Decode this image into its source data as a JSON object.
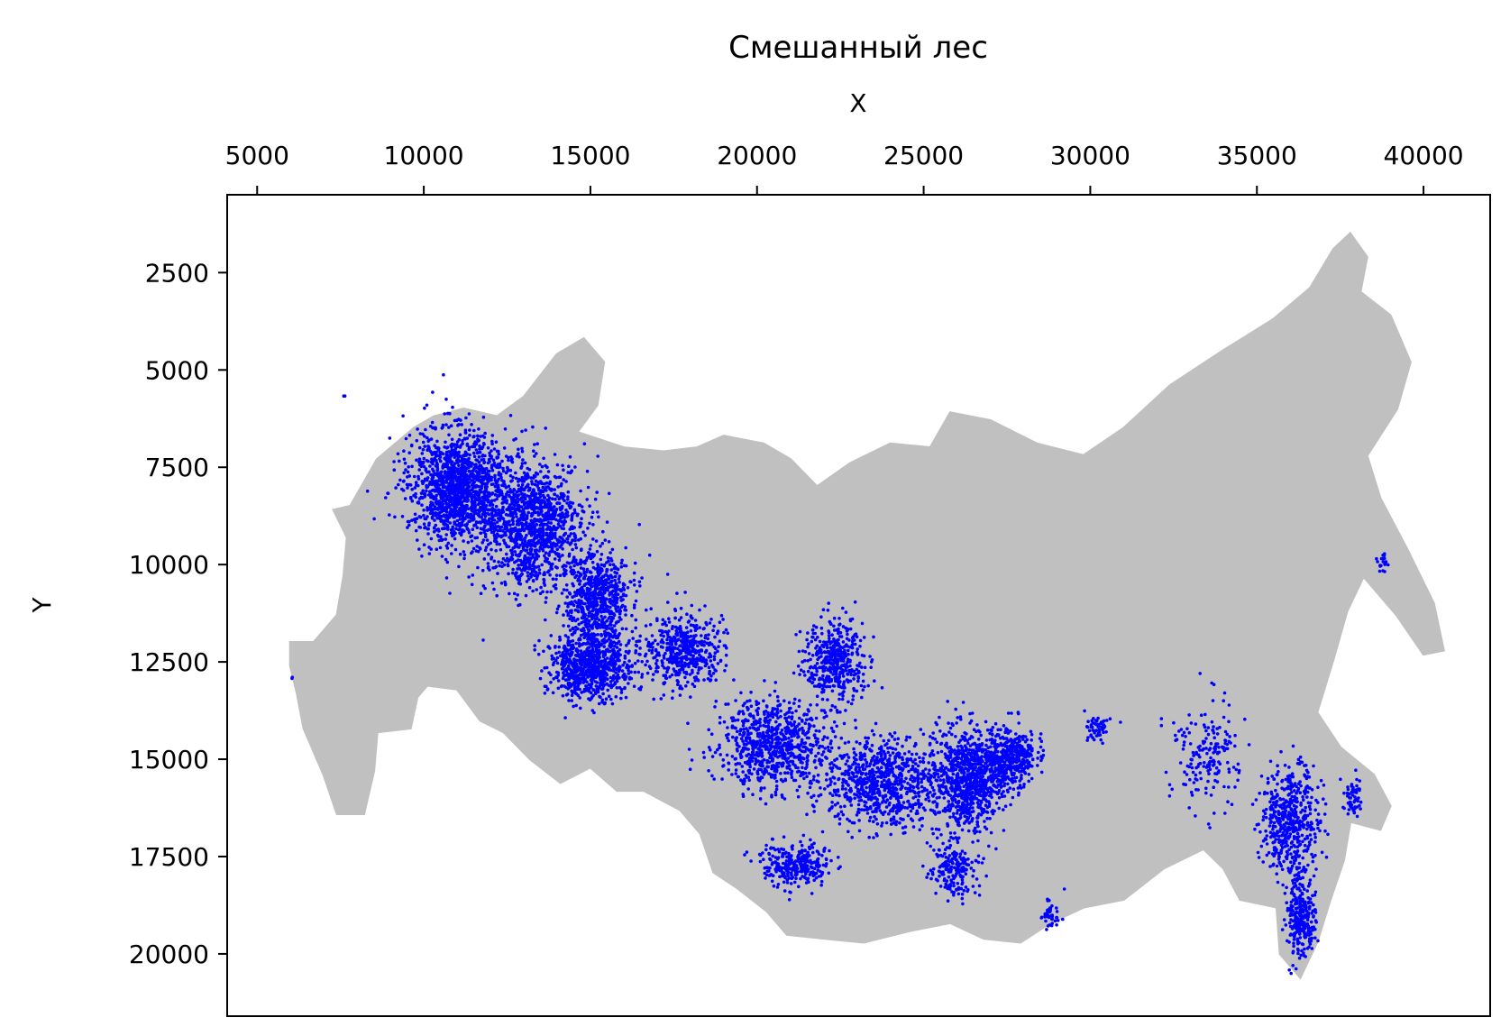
{
  "chart_data": {
    "type": "scatter",
    "title": "Смешанный лес",
    "xlabel": "X",
    "ylabel": "Y",
    "xlim": [
      4100,
      42000
    ],
    "ylim": [
      500,
      21600
    ],
    "y_inverted": true,
    "x_axis_position": "top",
    "grid": false,
    "x_ticks": [
      5000,
      10000,
      15000,
      20000,
      25000,
      30000,
      35000,
      40000
    ],
    "y_ticks": [
      2500,
      5000,
      7500,
      10000,
      12500,
      15000,
      17500,
      20000
    ],
    "background_color": "#c0c0c0",
    "point_color": "#0000ff",
    "series": [
      {
        "role": "background-territory",
        "polygon": [
          [
            6000,
            12000
          ],
          [
            6700,
            12000
          ],
          [
            7400,
            11300
          ],
          [
            7600,
            10300
          ],
          [
            7700,
            9300
          ],
          [
            7300,
            8600
          ],
          [
            7800,
            8500
          ],
          [
            8600,
            7300
          ],
          [
            9700,
            6500
          ],
          [
            10300,
            6200
          ],
          [
            11200,
            6000
          ],
          [
            12200,
            6200
          ],
          [
            13000,
            5700
          ],
          [
            14000,
            4600
          ],
          [
            14800,
            4200
          ],
          [
            15400,
            4800
          ],
          [
            15200,
            5900
          ],
          [
            14600,
            6600
          ],
          [
            16000,
            7000
          ],
          [
            17200,
            7100
          ],
          [
            18200,
            7000
          ],
          [
            19000,
            6700
          ],
          [
            20200,
            6900
          ],
          [
            21000,
            7300
          ],
          [
            21800,
            8000
          ],
          [
            22800,
            7400
          ],
          [
            24000,
            6900
          ],
          [
            25200,
            7000
          ],
          [
            25800,
            6100
          ],
          [
            27000,
            6300
          ],
          [
            28400,
            6900
          ],
          [
            29800,
            7200
          ],
          [
            31000,
            6500
          ],
          [
            32400,
            5400
          ],
          [
            34000,
            4500
          ],
          [
            35500,
            3700
          ],
          [
            36600,
            2900
          ],
          [
            37300,
            1900
          ],
          [
            37800,
            1500
          ],
          [
            38300,
            2100
          ],
          [
            38100,
            3000
          ],
          [
            39000,
            3600
          ],
          [
            39600,
            4800
          ],
          [
            39200,
            6000
          ],
          [
            38300,
            7200
          ],
          [
            38700,
            8300
          ],
          [
            39500,
            9600
          ],
          [
            40300,
            11000
          ],
          [
            40600,
            12200
          ],
          [
            40000,
            12300
          ],
          [
            39200,
            11300
          ],
          [
            38200,
            10300
          ],
          [
            37700,
            11200
          ],
          [
            37300,
            12400
          ],
          [
            36800,
            13800
          ],
          [
            37500,
            14700
          ],
          [
            38500,
            15400
          ],
          [
            39000,
            16200
          ],
          [
            38700,
            16800
          ],
          [
            37800,
            16600
          ],
          [
            37600,
            17600
          ],
          [
            37200,
            18600
          ],
          [
            36800,
            19700
          ],
          [
            36300,
            20600
          ],
          [
            35700,
            20000
          ],
          [
            35600,
            18800
          ],
          [
            34500,
            18600
          ],
          [
            34000,
            17800
          ],
          [
            33400,
            17300
          ],
          [
            32200,
            17800
          ],
          [
            31000,
            18600
          ],
          [
            29800,
            18800
          ],
          [
            28800,
            19200
          ],
          [
            27900,
            19700
          ],
          [
            26800,
            19600
          ],
          [
            25800,
            19200
          ],
          [
            24600,
            19400
          ],
          [
            23200,
            19700
          ],
          [
            22000,
            19600
          ],
          [
            20900,
            19500
          ],
          [
            20300,
            18900
          ],
          [
            19400,
            18300
          ],
          [
            18700,
            17900
          ],
          [
            18300,
            16900
          ],
          [
            17700,
            16300
          ],
          [
            16600,
            15800
          ],
          [
            15800,
            15800
          ],
          [
            15000,
            15200
          ],
          [
            14100,
            15600
          ],
          [
            13200,
            15000
          ],
          [
            12400,
            14300
          ],
          [
            11700,
            14000
          ],
          [
            11000,
            13200
          ],
          [
            10100,
            13100
          ],
          [
            9800,
            13400
          ],
          [
            9600,
            14200
          ],
          [
            8600,
            14300
          ],
          [
            8500,
            15300
          ],
          [
            8200,
            16400
          ],
          [
            7400,
            16400
          ],
          [
            7000,
            15400
          ],
          [
            6400,
            14200
          ],
          [
            6200,
            13300
          ],
          [
            6000,
            12600
          ]
        ]
      },
      {
        "role": "forest-points",
        "clusters": [
          {
            "center": [
              11000,
              8000
            ],
            "spread": [
              1300,
              1300
            ],
            "count": 1400
          },
          {
            "center": [
              13200,
              9000
            ],
            "spread": [
              1300,
              1500
            ],
            "count": 1200
          },
          {
            "center": [
              15200,
              10800
            ],
            "spread": [
              900,
              1100
            ],
            "count": 700
          },
          {
            "center": [
              15000,
              12600
            ],
            "spread": [
              1100,
              800
            ],
            "count": 800
          },
          {
            "center": [
              17800,
              12200
            ],
            "spread": [
              1100,
              800
            ],
            "count": 500
          },
          {
            "center": [
              20500,
              14600
            ],
            "spread": [
              1500,
              1000
            ],
            "count": 800
          },
          {
            "center": [
              22300,
              12500
            ],
            "spread": [
              800,
              1000
            ],
            "count": 450
          },
          {
            "center": [
              23700,
              15600
            ],
            "spread": [
              1500,
              1000
            ],
            "count": 800
          },
          {
            "center": [
              26300,
              15500
            ],
            "spread": [
              1000,
              1200
            ],
            "count": 900
          },
          {
            "center": [
              27600,
              15000
            ],
            "spread": [
              700,
              700
            ],
            "count": 400
          },
          {
            "center": [
              21200,
              17700
            ],
            "spread": [
              1000,
              500
            ],
            "count": 300
          },
          {
            "center": [
              25900,
              17800
            ],
            "spread": [
              600,
              600
            ],
            "count": 200
          },
          {
            "center": [
              28800,
              19000
            ],
            "spread": [
              300,
              400
            ],
            "count": 40
          },
          {
            "center": [
              30200,
              14200
            ],
            "spread": [
              300,
              300
            ],
            "count": 60
          },
          {
            "center": [
              33500,
              14800
            ],
            "spread": [
              900,
              1300
            ],
            "count": 180
          },
          {
            "center": [
              36000,
              16600
            ],
            "spread": [
              800,
              1200
            ],
            "count": 500
          },
          {
            "center": [
              36300,
              19000
            ],
            "spread": [
              400,
              900
            ],
            "count": 300
          },
          {
            "center": [
              37900,
              16000
            ],
            "spread": [
              300,
              500
            ],
            "count": 60
          },
          {
            "center": [
              38800,
              10000
            ],
            "spread": [
              150,
              250
            ],
            "count": 20
          },
          {
            "center": [
              7600,
              5700
            ],
            "spread": [
              30,
              30
            ],
            "count": 2
          },
          {
            "center": [
              6050,
              12900
            ],
            "spread": [
              30,
              30
            ],
            "count": 2
          }
        ]
      }
    ]
  }
}
